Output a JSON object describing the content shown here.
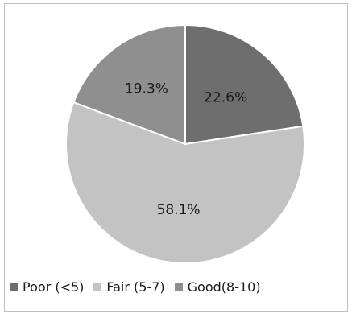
{
  "chart_data": {
    "type": "pie",
    "title": "",
    "categories": [
      "Poor (<5)",
      "Fair (5-7)",
      "Good(8-10)"
    ],
    "values": [
      22.6,
      58.1,
      19.3
    ],
    "labels": [
      "22.6%",
      "58.1%",
      "19.3%"
    ],
    "colors": [
      "#6e6e6e",
      "#c3c3c3",
      "#8f8f8f"
    ],
    "start_angle": "12 o'clock",
    "direction": "clockwise",
    "legend_position": "bottom"
  }
}
